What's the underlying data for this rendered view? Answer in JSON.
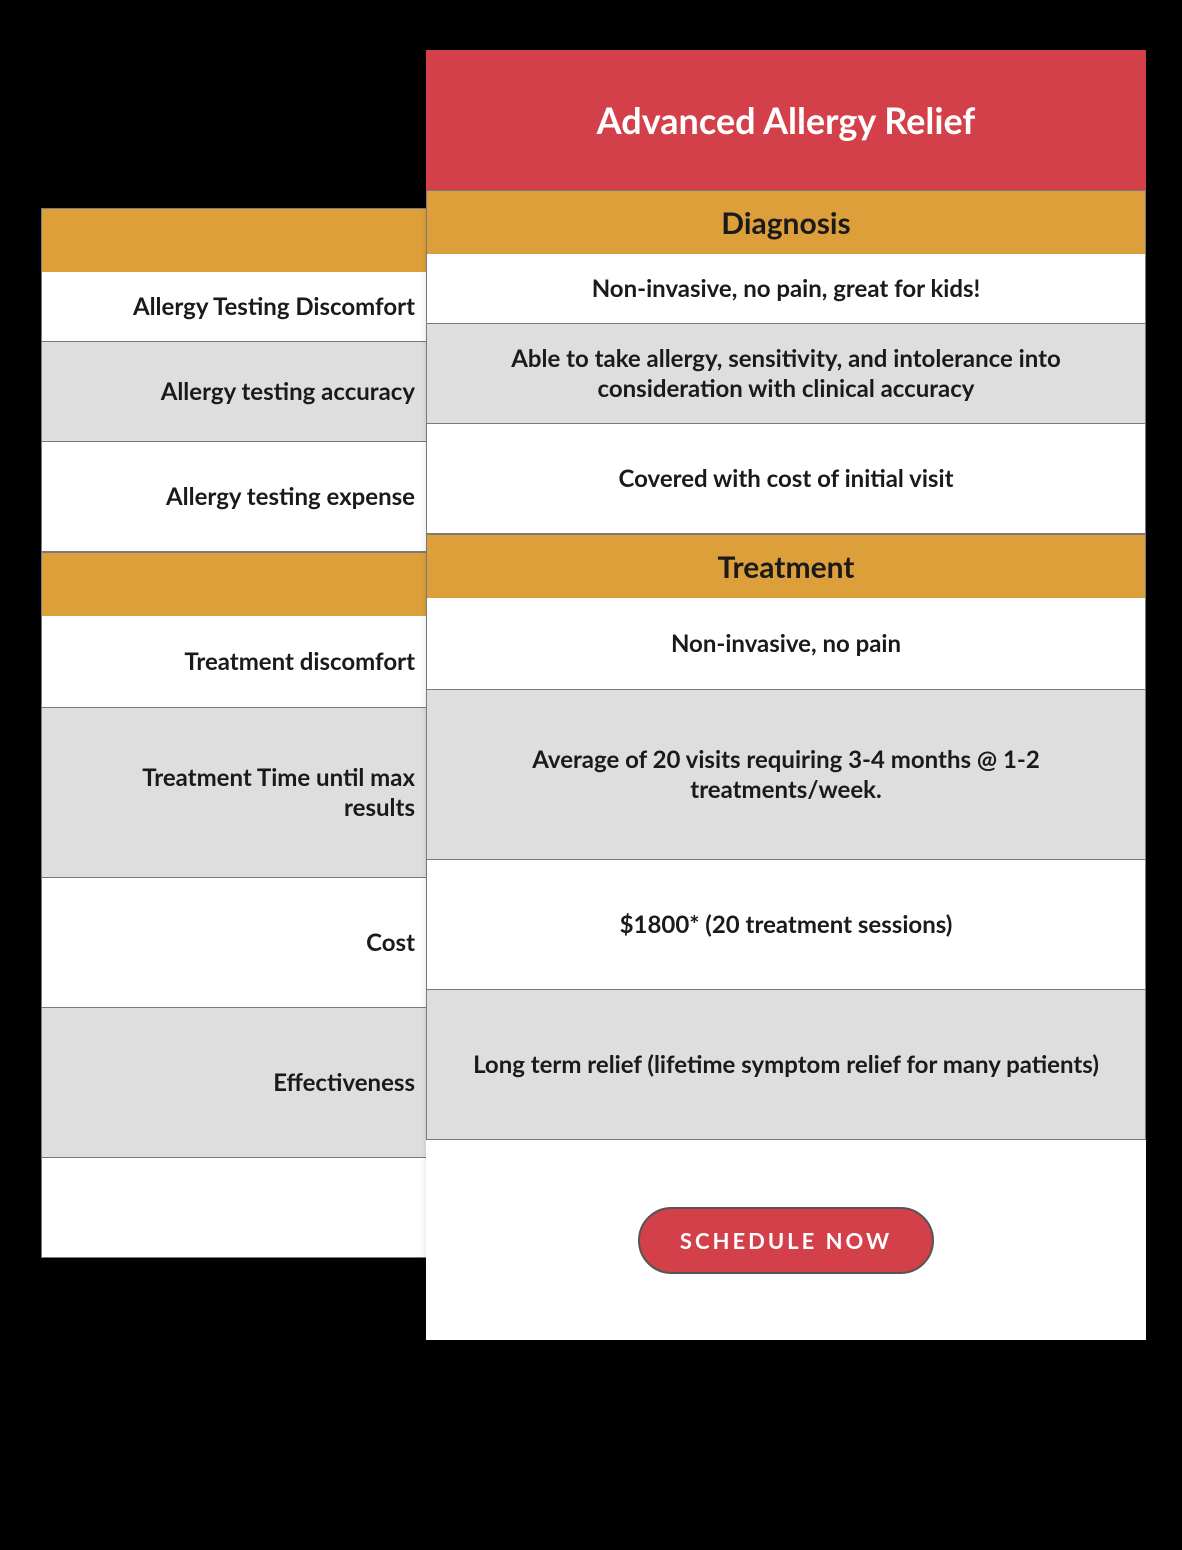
{
  "colors": {
    "page_bg": "#000000",
    "card_bg": "#ffffff",
    "header_bg": "#d3404a",
    "header_text": "#ffffff",
    "section_bg": "#dd9f3a",
    "row_alt_bg": "#dedede",
    "border": "#7a7a7a",
    "text": "#1a1a1a",
    "cta_bg": "#d3404a",
    "cta_text": "#ffffff",
    "cta_border": "#555555"
  },
  "header": {
    "title": "Advanced Allergy Relief"
  },
  "sections": [
    {
      "title": "Diagnosis",
      "rows": [
        {
          "label": "Allergy Testing Discomfort",
          "value": "Non-invasive, no pain, great for kids!",
          "alt": false,
          "height": "h-70"
        },
        {
          "label": "Allergy testing accuracy",
          "value": "Able to take allergy, sensitivity, and intolerance into consideration with clinical accuracy",
          "alt": true,
          "height": "h-100"
        },
        {
          "label": "Allergy testing expense",
          "value": "Covered with cost of initial visit",
          "alt": false,
          "height": "h-110"
        }
      ]
    },
    {
      "title": "Treatment",
      "rows": [
        {
          "label": "Treatment discomfort",
          "value": "Non-invasive, no pain",
          "alt": false,
          "height": "h-92"
        },
        {
          "label": "Treatment Time until max results",
          "value": "Average of 20 visits requiring 3-4 months @ 1-2 treatments/week.",
          "alt": true,
          "height": "h-170"
        },
        {
          "label": "Cost",
          "value": "$1800* (20 treatment sessions)",
          "alt": false,
          "height": "h-130"
        },
        {
          "label": "Effectiveness",
          "value": "Long term relief (lifetime symptom relief for many patients)",
          "alt": true,
          "height": "h-150"
        }
      ]
    }
  ],
  "cta": {
    "label": "SCHEDULE NOW"
  }
}
